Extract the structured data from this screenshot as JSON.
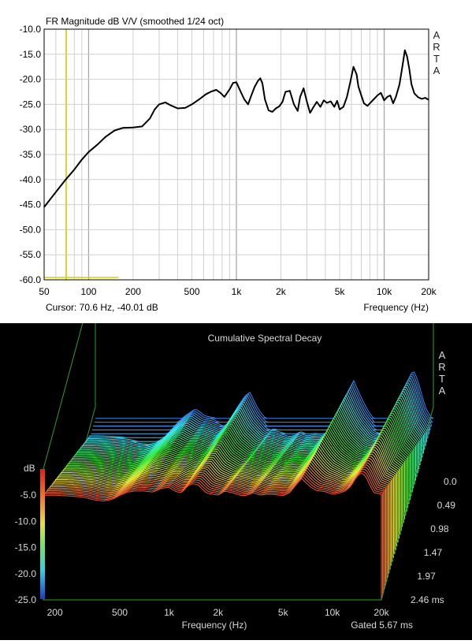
{
  "fr_chart": {
    "title": "FR Magnitude dB V/V (smoothed 1/24 oct)",
    "brand": [
      "A",
      "R",
      "T",
      "A"
    ],
    "y_ticks": [
      "-10.0",
      "-15.0",
      "-20.0",
      "-25.0",
      "-30.0",
      "-35.0",
      "-40.0",
      "-45.0",
      "-50.0",
      "-55.0",
      "-60.0"
    ],
    "x_ticks": [
      "50",
      "100",
      "200",
      "500",
      "1k",
      "2k",
      "5k",
      "10k",
      "20k"
    ],
    "cursor_text": "Cursor: 70.6 Hz, -40.01 dB",
    "xlabel": "Frequency (Hz)",
    "colors": {
      "background": "#ffffff",
      "grid": "#c8c8c8",
      "curve": "#000000",
      "cursor": "#d4d400"
    }
  },
  "csd_chart": {
    "title": "Cumulative Spectral Decay",
    "brand": [
      "A",
      "R",
      "T",
      "A"
    ],
    "db_label": "dB",
    "db_ticks": [
      "-5.0",
      "-10.0",
      "-15.0",
      "-20.0",
      "-25.0"
    ],
    "x_ticks": [
      "200",
      "500",
      "1k",
      "2k",
      "5k",
      "10k",
      "20k"
    ],
    "time_ticks": [
      "0.0",
      "0.49",
      "0.98",
      "1.47",
      "1.97",
      "2.46 ms"
    ],
    "xlabel": "Frequency (Hz)",
    "gated_text": "Gated 5.67 ms",
    "colors": {
      "background": "#000000",
      "frame": "#2e9e2e",
      "text": "#d8d8d8"
    }
  },
  "chart_data": [
    {
      "type": "line",
      "title": "FR Magnitude dB V/V (smoothed 1/24 oct)",
      "xlabel": "Frequency (Hz)",
      "ylabel": "",
      "xscale": "log",
      "xlim": [
        50,
        20000
      ],
      "ylim": [
        -60,
        -10
      ],
      "grid": true,
      "cursor": {
        "x": 70.6,
        "y": -40.01
      },
      "series": [
        {
          "x": [
            50,
            60,
            70,
            80,
            90,
            100,
            115,
            130,
            150,
            170,
            200,
            230,
            260,
            280,
            300,
            330,
            360,
            400,
            450,
            500,
            560,
            620,
            680,
            730,
            780,
            830,
            900,
            950,
            1000,
            1070,
            1130,
            1200,
            1270,
            1330,
            1400,
            1450,
            1500,
            1560,
            1650,
            1750,
            1850,
            1950,
            2050,
            2150,
            2300,
            2450,
            2600,
            2700,
            2850,
            3000,
            3150,
            3300,
            3500,
            3700,
            3900,
            4100,
            4350,
            4600,
            4800,
            5000,
            5300,
            5600,
            5900,
            6200,
            6500,
            6700,
            7000,
            7300,
            7700,
            8000,
            8500,
            9000,
            9500,
            10000,
            10500,
            11000,
            11500,
            12000,
            12700,
            13300,
            13800,
            14300,
            14800,
            15300,
            16000,
            17000,
            18000,
            19000,
            20000
          ],
          "y": [
            -45.5,
            -42.5,
            -40,
            -38,
            -36,
            -34.5,
            -33,
            -31.5,
            -30.2,
            -29.7,
            -29.6,
            -29.4,
            -27.8,
            -26,
            -25,
            -24.6,
            -25.2,
            -25.8,
            -25.7,
            -25,
            -24,
            -23,
            -22.4,
            -22.1,
            -22.7,
            -23.5,
            -22,
            -20.7,
            -20.6,
            -22.5,
            -24,
            -25,
            -23,
            -21.5,
            -20.3,
            -19.8,
            -20.8,
            -24,
            -26.2,
            -26.5,
            -25.8,
            -25.4,
            -24.5,
            -22.5,
            -22.3,
            -25,
            -26.3,
            -23.5,
            -21.8,
            -24.5,
            -26.7,
            -25.7,
            -24.5,
            -25.5,
            -24.2,
            -24.7,
            -24.4,
            -25.5,
            -24.3,
            -26,
            -25.5,
            -23.5,
            -20.5,
            -17.5,
            -19,
            -21.5,
            -23.2,
            -24.8,
            -25.3,
            -24.8,
            -24,
            -23.2,
            -22.7,
            -24.2,
            -23.5,
            -23.2,
            -24.8,
            -23.5,
            -21,
            -17.3,
            -14.2,
            -15.5,
            -18,
            -21,
            -22.8,
            -23.6,
            -23.9,
            -23.7,
            -24.1
          ]
        }
      ]
    },
    {
      "type": "waterfall",
      "title": "Cumulative Spectral Decay",
      "xlabel": "Frequency (Hz)",
      "zlabel": "dB",
      "xscale": "log",
      "xlim": [
        170,
        20000
      ],
      "zlim": [
        -25,
        0
      ],
      "tlim_ms": [
        0,
        2.46
      ],
      "gate_ms": 5.67,
      "slice_count": 48,
      "front_slice": {
        "x": [
          170,
          200,
          230,
          260,
          300,
          350,
          400,
          450,
          500,
          560,
          620,
          700,
          800,
          900,
          1000,
          1100,
          1200,
          1300,
          1400,
          1500,
          1700,
          2000,
          2200,
          2500,
          2800,
          3000,
          3300,
          3600,
          4000,
          4500,
          5000,
          5500,
          6000,
          6500,
          7000,
          7500,
          8000,
          9000,
          10000,
          11000,
          12000,
          13000,
          14000,
          15000,
          16000,
          17000,
          18000,
          20000
        ],
        "z": [
          -5,
          -5,
          -5.1,
          -5.2,
          -5.4,
          -5.9,
          -6.1,
          -5.8,
          -5,
          -4.4,
          -4.2,
          -4.2,
          -4.4,
          -3.7,
          -3.5,
          -4.3,
          -4.5,
          -3.2,
          -2.8,
          -3,
          -4.6,
          -5,
          -4.2,
          -4.6,
          -5.1,
          -5,
          -4.5,
          -5,
          -4.8,
          -4.9,
          -5.1,
          -4.5,
          -3,
          -1.8,
          -2.8,
          -3.6,
          -4.1,
          -4.3,
          -4.8,
          -4.6,
          -4.2,
          -3.3,
          -1.6,
          -0.7,
          -1.3,
          -3.1,
          -4.5,
          -4.8
        ]
      }
    }
  ]
}
